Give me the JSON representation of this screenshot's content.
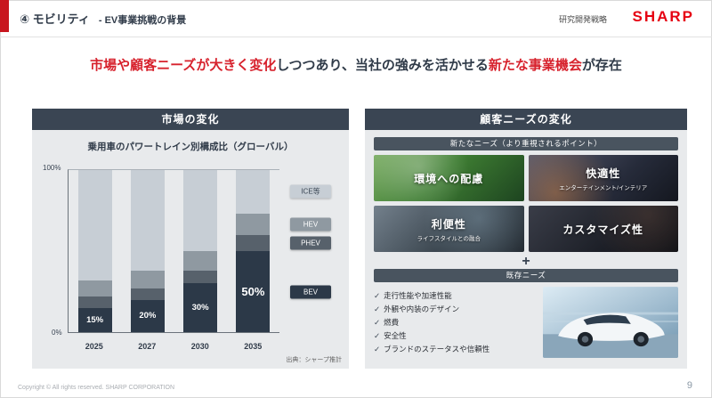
{
  "header": {
    "title_number": "④ モビリティ",
    "title_sub": "- EV事業挑戦の背景",
    "category_label": "研究開発戦略",
    "logo_text": "SHARP"
  },
  "headline": {
    "seg1": "市場や顧客ニーズが大きく変化",
    "seg2": "しつつあり、当社の強みを活かせる",
    "seg3": "新たな事業機会",
    "seg4": "が存在"
  },
  "market_panel": {
    "title": "市場の変化",
    "chart_title": "乗用車のパワートレイン別構成比（グローバル）",
    "y_top": "100%",
    "y_bottom": "0%",
    "source": "出典：シャープ推計"
  },
  "chart_data": {
    "type": "bar",
    "stacked": true,
    "title": "乗用車のパワートレイン別構成比（グローバル）",
    "categories": [
      "2025",
      "2027",
      "2030",
      "2035"
    ],
    "series": [
      {
        "name": "BEV",
        "color": "#2c3948",
        "values": [
          15,
          20,
          30,
          50
        ]
      },
      {
        "name": "PHEV",
        "color": "#57616b",
        "values": [
          7,
          7,
          8,
          10
        ]
      },
      {
        "name": "HEV",
        "color": "#8f99a1",
        "values": [
          10,
          11,
          12,
          13
        ]
      },
      {
        "name": "ICE等",
        "color": "#c7ced5",
        "text_color": "#3a4553",
        "values": [
          68,
          62,
          50,
          27
        ]
      }
    ],
    "bar_labels": [
      "15%",
      "20%",
      "30%",
      "50%"
    ],
    "ylim": [
      0,
      100
    ],
    "grid": false,
    "legend_position": "right",
    "source": "出典：シャープ推計"
  },
  "needs_panel": {
    "title": "顧客ニーズの変化",
    "new_needs_header": "新たなニーズ（より重視されるポイント）",
    "tiles": [
      {
        "title": "環境への配慮",
        "subtitle": ""
      },
      {
        "title": "快適性",
        "subtitle": "エンターテインメント/インテリア"
      },
      {
        "title": "利便性",
        "subtitle": "ライフスタイルとの融合"
      },
      {
        "title": "カスタマイズ性",
        "subtitle": ""
      }
    ],
    "plus_sign": "+",
    "existing_needs_header": "既存ニーズ",
    "check_mark": "✓",
    "existing_needs": [
      "走行性能や加速性能",
      "外観や内装のデザイン",
      "燃費",
      "安全性",
      "ブランドのステータスや信頼性"
    ]
  },
  "footer": {
    "copyright": "Copyright © All rights reserved. SHARP CORPORATION",
    "page_number": "9"
  },
  "colors": {
    "brand_red": "#e60012",
    "headline_red": "#d7222d",
    "navy": "#3a4553",
    "panel_bg": "#e8eaec"
  }
}
